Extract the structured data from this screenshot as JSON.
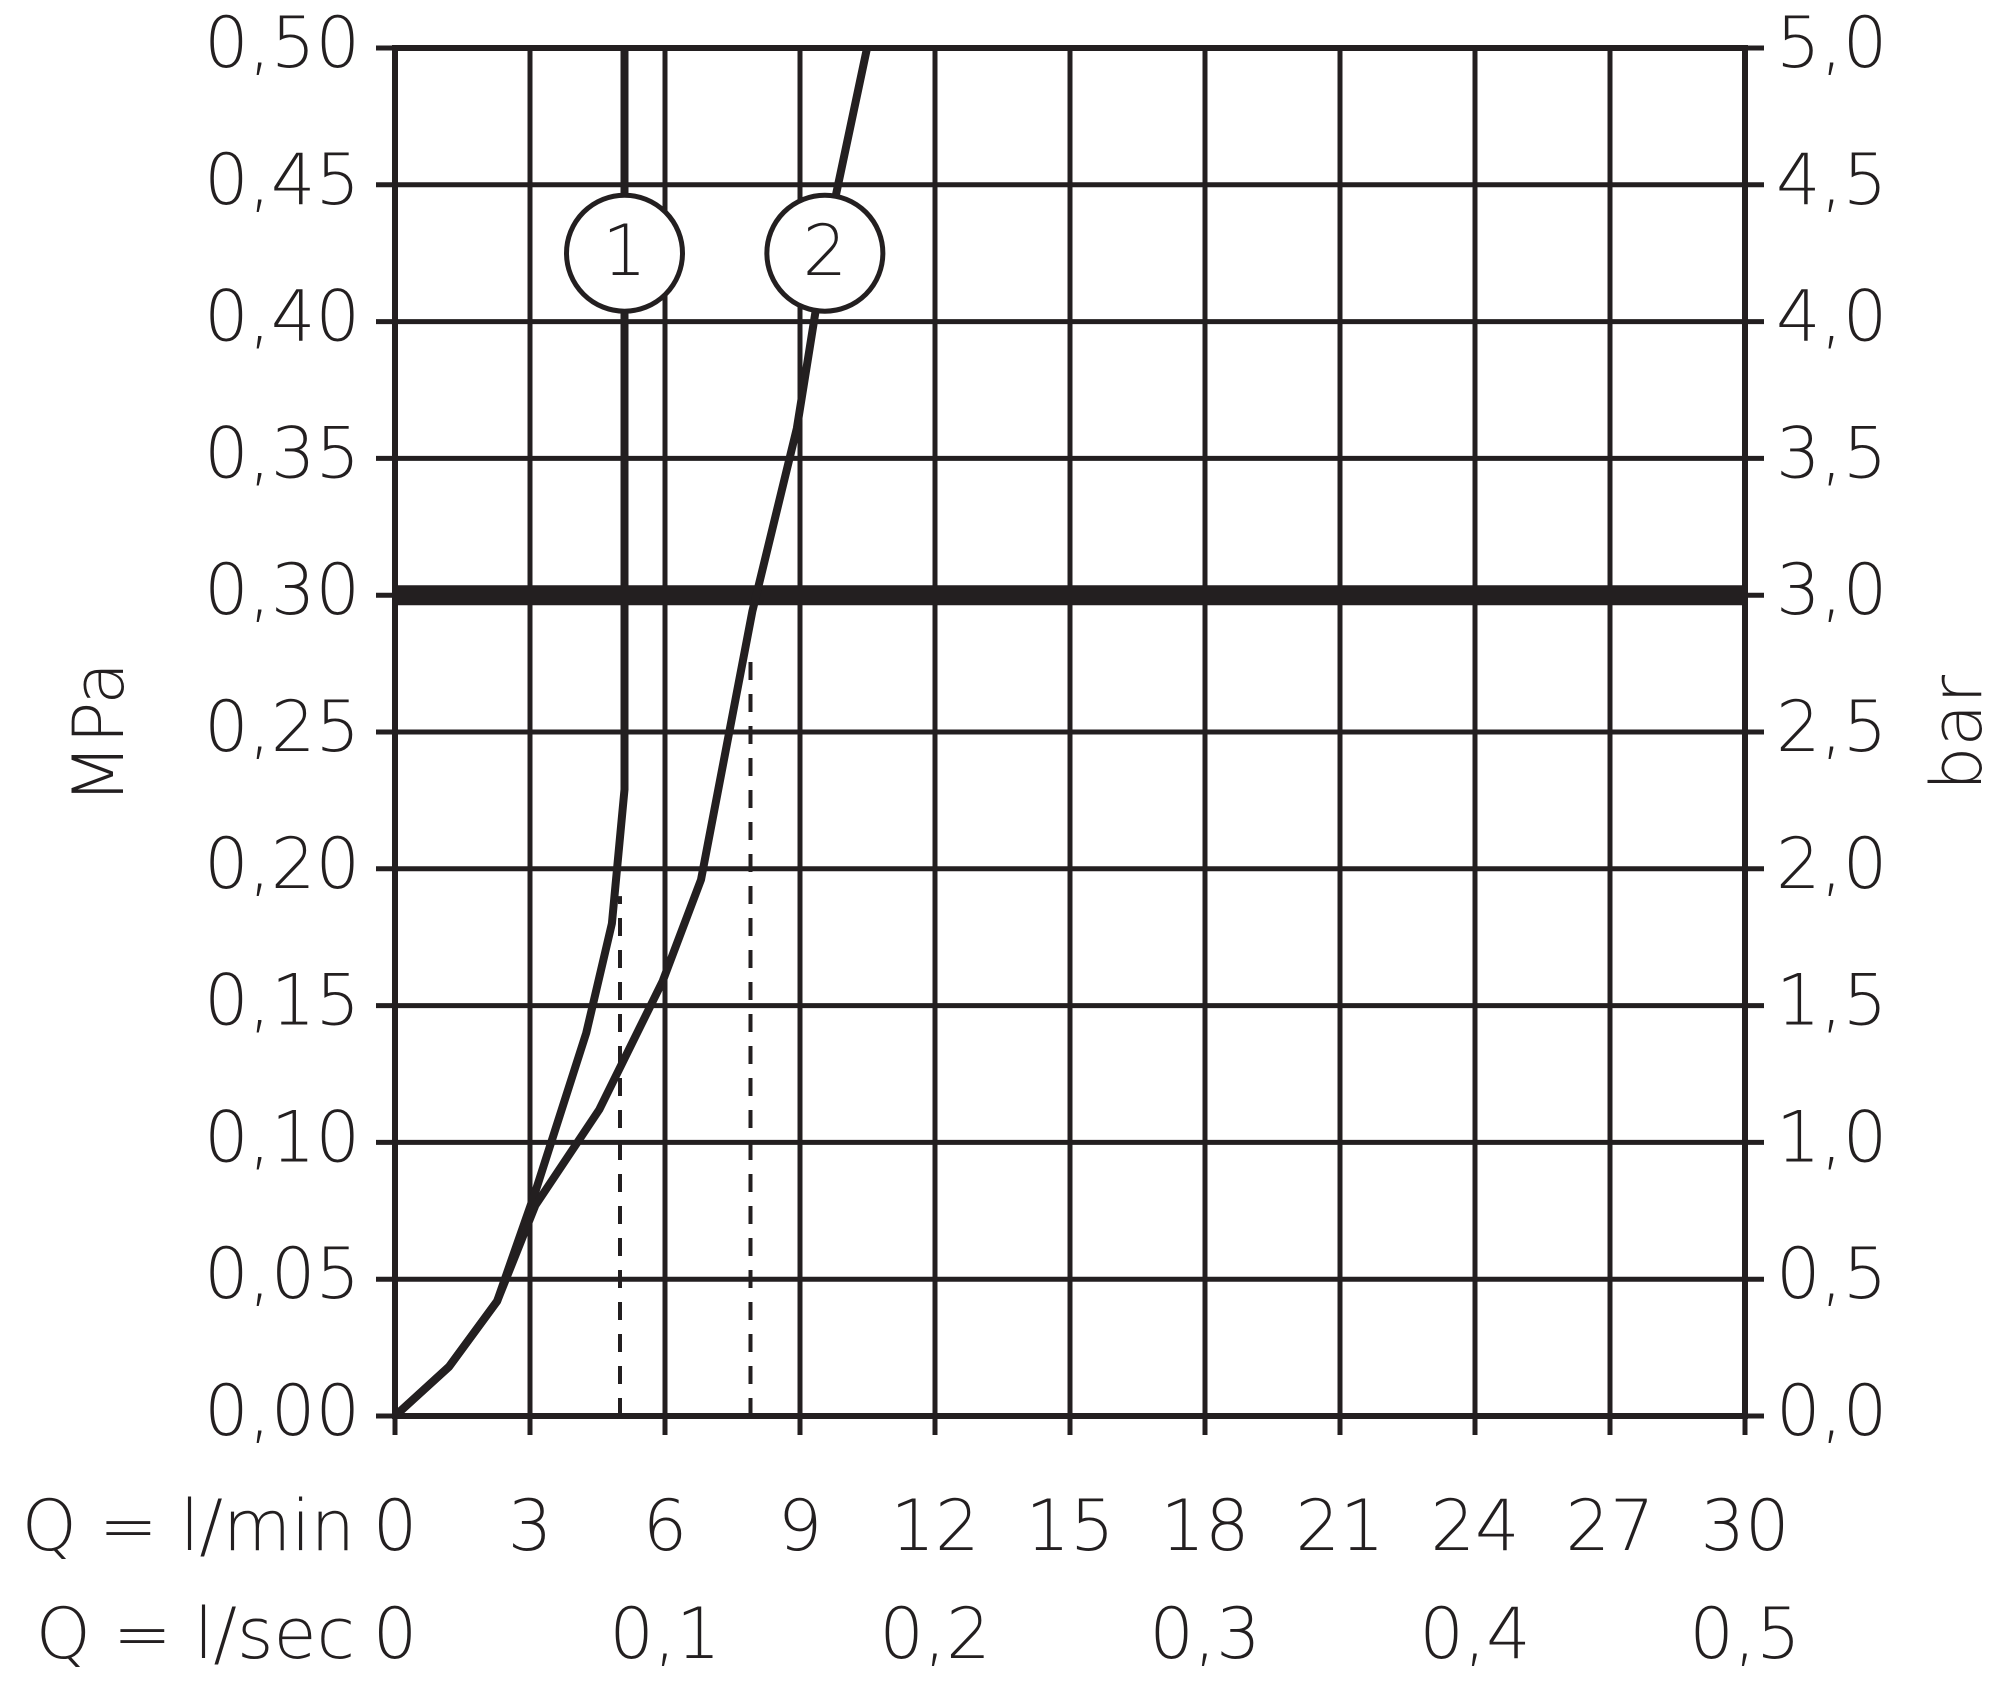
{
  "chart_data": {
    "type": "line",
    "xlabel": "Q = l/min",
    "x2label": "Q = l/sec",
    "ylabel": "MPa",
    "y2label": "bar",
    "xlim": [
      0,
      30
    ],
    "xticks": [
      0,
      3,
      6,
      9,
      12,
      15,
      18,
      21,
      24,
      27,
      30
    ],
    "x2lim": [
      0,
      0.5
    ],
    "x2ticks": [
      0,
      {
        "value": 0.1,
        "label": "0,1"
      },
      {
        "value": 0.2,
        "label": "0,2"
      },
      {
        "value": 0.3,
        "label": "0,3"
      },
      {
        "value": 0.4,
        "label": "0,4"
      },
      {
        "value": 0.5,
        "label": "0,5"
      }
    ],
    "ylim": [
      0,
      0.5
    ],
    "yticks": [
      {
        "value": 0,
        "label": "0,00"
      },
      {
        "value": 0.05,
        "label": "0,05"
      },
      {
        "value": 0.1,
        "label": "0,10"
      },
      {
        "value": 0.15,
        "label": "0,15"
      },
      {
        "value": 0.2,
        "label": "0,20"
      },
      {
        "value": 0.25,
        "label": "0,25"
      },
      {
        "value": 0.3,
        "label": "0,30"
      },
      {
        "value": 0.35,
        "label": "0,35"
      },
      {
        "value": 0.4,
        "label": "0,40"
      },
      {
        "value": 0.45,
        "label": "0,45"
      },
      {
        "value": 0.5,
        "label": "0,50"
      }
    ],
    "y2lim": [
      0,
      5
    ],
    "y2ticks": [
      {
        "value": 0,
        "label": "0,0"
      },
      {
        "value": 0.5,
        "label": "0,5"
      },
      {
        "value": 1,
        "label": "1,0"
      },
      {
        "value": 1.5,
        "label": "1,5"
      },
      {
        "value": 2,
        "label": "2,0"
      },
      {
        "value": 2.5,
        "label": "2,5"
      },
      {
        "value": 3,
        "label": "3,0"
      },
      {
        "value": 3.5,
        "label": "3,5"
      },
      {
        "value": 4,
        "label": "4,0"
      },
      {
        "value": 4.5,
        "label": "4,5"
      },
      {
        "value": 5,
        "label": "5,0"
      }
    ],
    "grid": true,
    "reference_line": 0.3,
    "dashed_lines": [
      {
        "x": 5,
        "y": 0.19
      },
      {
        "x": 7.9,
        "y": 0.28
      }
    ],
    "series": [
      {
        "name": "1",
        "color": "#231f20",
        "x": [
          0,
          1.2,
          2.27,
          3.12,
          4.25,
          4.82,
          5.1,
          5.1
        ],
        "values": [
          0,
          0.018,
          0.042,
          0.082,
          0.14,
          0.18,
          0.229,
          0.5
        ]
      },
      {
        "name": "2",
        "color": "#231f20",
        "x": [
          0,
          1.2,
          2.27,
          3.12,
          4.54,
          5.95,
          6.8,
          7.94,
          8.93,
          9.64,
          10.49
        ],
        "values": [
          0,
          0.018,
          0.042,
          0.077,
          0.112,
          0.159,
          0.196,
          0.294,
          0.361,
          0.434,
          0.5
        ]
      }
    ]
  }
}
